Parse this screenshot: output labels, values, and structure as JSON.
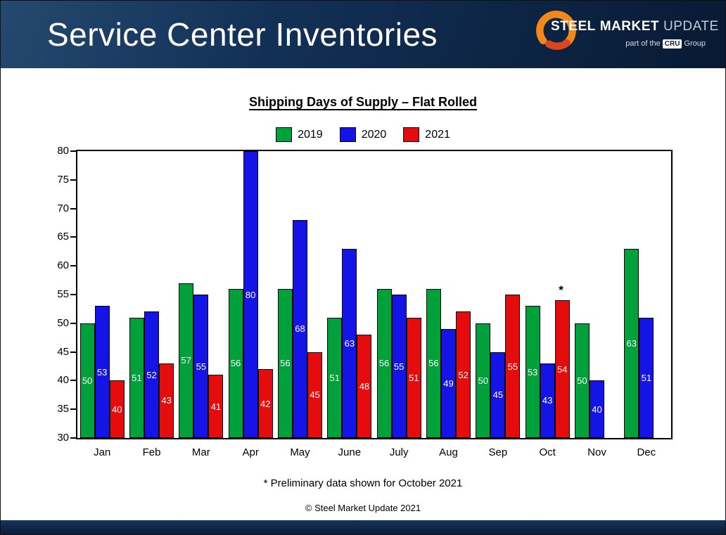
{
  "header": {
    "title": "Service Center Inventories",
    "logo": {
      "steel": "STEEL",
      "market": "MARKET",
      "update": "UPDATE",
      "tagline_pre": "part of the",
      "cru": "CRU",
      "tagline_post": "Group"
    }
  },
  "chart": {
    "title": "Shipping Days of Supply – Flat Rolled",
    "footnote": "* Preliminary data shown for October 2021",
    "copyright": "© Steel Market Update 2021"
  },
  "chart_data": {
    "type": "bar",
    "title": "Shipping Days of Supply – Flat Rolled",
    "categories": [
      "Jan",
      "Feb",
      "Mar",
      "Apr",
      "May",
      "June",
      "July",
      "Aug",
      "Sep",
      "Oct",
      "Nov",
      "Dec"
    ],
    "series": [
      {
        "name": "2019",
        "color": "#00A13A",
        "values": [
          50,
          51,
          57,
          56,
          56,
          51,
          56,
          56,
          50,
          53,
          50,
          63
        ]
      },
      {
        "name": "2020",
        "color": "#1414E6",
        "values": [
          53,
          52,
          55,
          80,
          68,
          63,
          55,
          49,
          45,
          43,
          40,
          51
        ]
      },
      {
        "name": "2021",
        "color": "#E40C0C",
        "values": [
          40,
          43,
          41,
          42,
          45,
          48,
          51,
          52,
          55,
          54,
          null,
          null
        ]
      }
    ],
    "ylim": [
      30,
      80
    ],
    "ytick_step": 5,
    "grid": false,
    "legend_position": "top",
    "value_labels": "inside-center",
    "annotation": {
      "month_index": 9,
      "series": "2021",
      "symbol": "*",
      "meaning": "Preliminary data shown for October 2021"
    }
  }
}
